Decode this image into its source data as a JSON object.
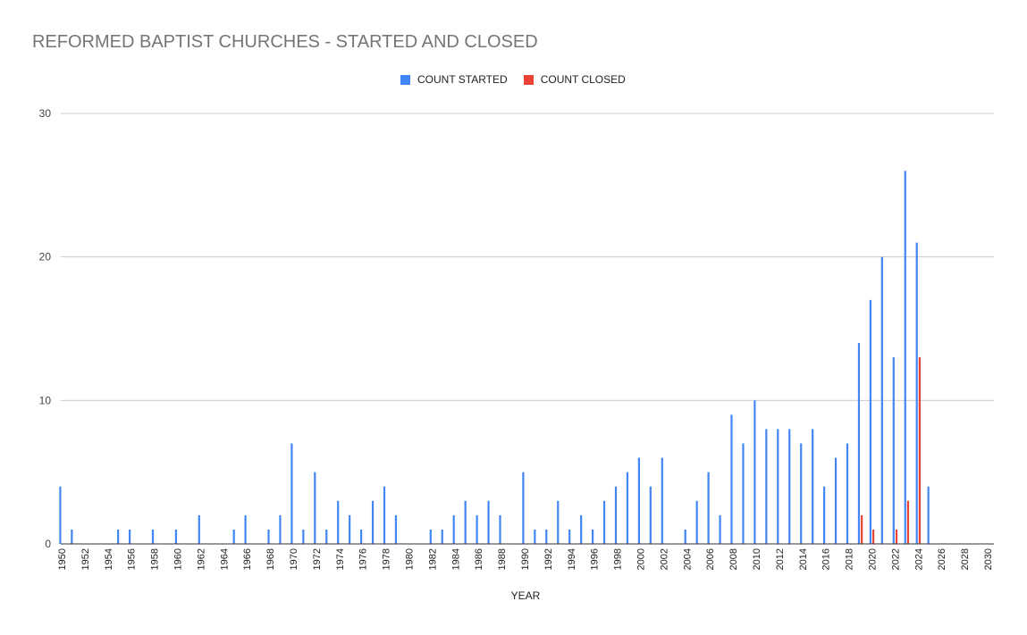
{
  "chart_data": {
    "type": "bar",
    "title": "REFORMED BAPTIST CHURCHES - STARTED AND CLOSED",
    "xlabel": "YEAR",
    "ylabel": "",
    "ylim": [
      0,
      30
    ],
    "y_ticks": [
      0,
      10,
      20,
      30
    ],
    "xlim": [
      1950,
      2030
    ],
    "x_tick_labels": [
      "1950",
      "1952",
      "1954",
      "1956",
      "1958",
      "1960",
      "1962",
      "1964",
      "1966",
      "1968",
      "1970",
      "1972",
      "1974",
      "1976",
      "1978",
      "1980",
      "1982",
      "1984",
      "1986",
      "1988",
      "1990",
      "1992",
      "1994",
      "1996",
      "1998",
      "2000",
      "2002",
      "2004",
      "2006",
      "2008",
      "2010",
      "2012",
      "2014",
      "2016",
      "2018",
      "2020",
      "2022",
      "2024",
      "2026",
      "2028",
      "2030"
    ],
    "grid": true,
    "legend_position": "top-center",
    "series": [
      {
        "name": "COUNT STARTED",
        "color": "#4285f4",
        "points": [
          [
            1950,
            4
          ],
          [
            1951,
            1
          ],
          [
            1955,
            1
          ],
          [
            1956,
            1
          ],
          [
            1958,
            1
          ],
          [
            1960,
            1
          ],
          [
            1962,
            2
          ],
          [
            1965,
            1
          ],
          [
            1966,
            2
          ],
          [
            1968,
            1
          ],
          [
            1969,
            2
          ],
          [
            1970,
            7
          ],
          [
            1971,
            1
          ],
          [
            1972,
            5
          ],
          [
            1973,
            1
          ],
          [
            1974,
            3
          ],
          [
            1975,
            2
          ],
          [
            1976,
            1
          ],
          [
            1977,
            3
          ],
          [
            1978,
            4
          ],
          [
            1979,
            2
          ],
          [
            1982,
            1
          ],
          [
            1983,
            1
          ],
          [
            1984,
            2
          ],
          [
            1985,
            3
          ],
          [
            1986,
            2
          ],
          [
            1987,
            3
          ],
          [
            1988,
            2
          ],
          [
            1990,
            5
          ],
          [
            1991,
            1
          ],
          [
            1992,
            1
          ],
          [
            1993,
            3
          ],
          [
            1994,
            1
          ],
          [
            1995,
            2
          ],
          [
            1996,
            1
          ],
          [
            1997,
            3
          ],
          [
            1998,
            4
          ],
          [
            1999,
            5
          ],
          [
            2000,
            6
          ],
          [
            2001,
            4
          ],
          [
            2002,
            6
          ],
          [
            2004,
            1
          ],
          [
            2005,
            3
          ],
          [
            2006,
            5
          ],
          [
            2007,
            2
          ],
          [
            2008,
            9
          ],
          [
            2009,
            7
          ],
          [
            2010,
            10
          ],
          [
            2011,
            8
          ],
          [
            2012,
            8
          ],
          [
            2013,
            8
          ],
          [
            2014,
            7
          ],
          [
            2015,
            8
          ],
          [
            2016,
            4
          ],
          [
            2017,
            6
          ],
          [
            2018,
            7
          ],
          [
            2019,
            14
          ],
          [
            2020,
            17
          ],
          [
            2021,
            20
          ],
          [
            2022,
            13
          ],
          [
            2023,
            26
          ],
          [
            2024,
            21
          ],
          [
            2025,
            4
          ]
        ]
      },
      {
        "name": "COUNT CLOSED",
        "color": "#ea4335",
        "points": [
          [
            2019,
            2
          ],
          [
            2020,
            1
          ],
          [
            2022,
            1
          ],
          [
            2023,
            3
          ],
          [
            2024,
            13
          ]
        ]
      }
    ]
  }
}
